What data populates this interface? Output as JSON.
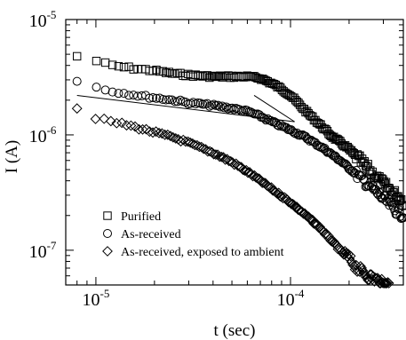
{
  "chart_data": {
    "type": "scatter",
    "title": "",
    "xlabel": "t (sec)",
    "ylabel": "I (A)",
    "xscale": "log",
    "yscale": "log",
    "xlim": [
      7e-06,
      0.00038
    ],
    "ylim": [
      5e-08,
      1e-05
    ],
    "grid": false,
    "legend_position": "bottom-left",
    "x_ticks": [
      {
        "value": 1e-05,
        "base": "10",
        "exp": "-5"
      },
      {
        "value": 0.0001,
        "base": "10",
        "exp": "-4"
      }
    ],
    "y_ticks": [
      {
        "value": 1e-07,
        "base": "10",
        "exp": "-7"
      },
      {
        "value": 1e-06,
        "base": "10",
        "exp": "-6"
      },
      {
        "value": 1e-05,
        "base": "10",
        "exp": "-5"
      }
    ],
    "series": [
      {
        "name": "Purified",
        "marker": "square",
        "points": [
          [
            8e-06,
            4.8e-06
          ],
          [
            1e-05,
            4.4e-06
          ],
          [
            1.2e-05,
            4e-06
          ],
          [
            1.5e-05,
            3.8e-06
          ],
          [
            2e-05,
            3.6e-06
          ],
          [
            2.5e-05,
            3.4e-06
          ],
          [
            3e-05,
            3.3e-06
          ],
          [
            4e-05,
            3.2e-06
          ],
          [
            5e-05,
            3.2e-06
          ],
          [
            6e-05,
            3.2e-06
          ],
          [
            7e-05,
            3.1e-06
          ],
          [
            8e-05,
            2.8e-06
          ],
          [
            9e-05,
            2.5e-06
          ],
          [
            0.0001,
            2.2e-06
          ],
          [
            0.00012,
            1.6e-06
          ],
          [
            0.00014,
            1.25e-06
          ],
          [
            0.00016,
            1e-06
          ],
          [
            0.0002,
            7.5e-07
          ],
          [
            0.00024,
            5.5e-07
          ],
          [
            0.00028,
            4.2e-07
          ],
          [
            0.00032,
            3.4e-07
          ],
          [
            0.00036,
            2.9e-07
          ],
          [
            0.00038,
            2.6e-07
          ]
        ]
      },
      {
        "name": "As-received",
        "marker": "circle",
        "points": [
          [
            8e-06,
            2.9e-06
          ],
          [
            1e-05,
            2.6e-06
          ],
          [
            1.2e-05,
            2.4e-06
          ],
          [
            1.5e-05,
            2.25e-06
          ],
          [
            2e-05,
            2.1e-06
          ],
          [
            2.5e-05,
            2e-06
          ],
          [
            3e-05,
            1.9e-06
          ],
          [
            4e-05,
            1.8e-06
          ],
          [
            5e-05,
            1.7e-06
          ],
          [
            6e-05,
            1.6e-06
          ],
          [
            7e-05,
            1.45e-06
          ],
          [
            8e-05,
            1.3e-06
          ],
          [
            0.0001,
            1.1e-06
          ],
          [
            0.00012,
            9.5e-07
          ],
          [
            0.00015,
            7.5e-07
          ],
          [
            0.00018,
            6e-07
          ],
          [
            0.00022,
            4.5e-07
          ],
          [
            0.00026,
            3.5e-07
          ],
          [
            0.0003,
            2.8e-07
          ],
          [
            0.00035,
            2.2e-07
          ],
          [
            0.00038,
            2e-07
          ]
        ]
      },
      {
        "name": "As-received, exposed to ambient",
        "marker": "diamond",
        "points": [
          [
            8e-06,
            1.7e-06
          ],
          [
            1e-05,
            1.4e-06
          ],
          [
            1.2e-05,
            1.3e-06
          ],
          [
            1.5e-05,
            1.2e-06
          ],
          [
            2e-05,
            1.05e-06
          ],
          [
            2.5e-05,
            9.5e-07
          ],
          [
            3e-05,
            8.5e-07
          ],
          [
            4e-05,
            7e-07
          ],
          [
            5e-05,
            5.8e-07
          ],
          [
            6e-05,
            4.8e-07
          ],
          [
            7e-05,
            4e-07
          ],
          [
            8e-05,
            3.4e-07
          ],
          [
            0.0001,
            2.6e-07
          ],
          [
            0.00012,
            2e-07
          ],
          [
            0.00014,
            1.6e-07
          ],
          [
            0.00016,
            1.25e-07
          ],
          [
            0.00018,
            1e-07
          ],
          [
            0.0002,
            8.5e-08
          ],
          [
            0.00022,
            7e-08
          ],
          [
            0.00025,
            6e-08
          ],
          [
            0.00028,
            5.5e-08
          ],
          [
            0.0003,
            5e-08
          ],
          [
            0.00032,
            5e-08
          ]
        ]
      }
    ],
    "reference_lines": [
      {
        "points": [
          [
            8e-06,
            2.2e-06
          ],
          [
            0.000105,
            1.3e-06
          ]
        ]
      },
      {
        "points": [
          [
            6.5e-05,
            2.2e-06
          ],
          [
            0.000105,
            1.3e-06
          ]
        ]
      }
    ]
  }
}
